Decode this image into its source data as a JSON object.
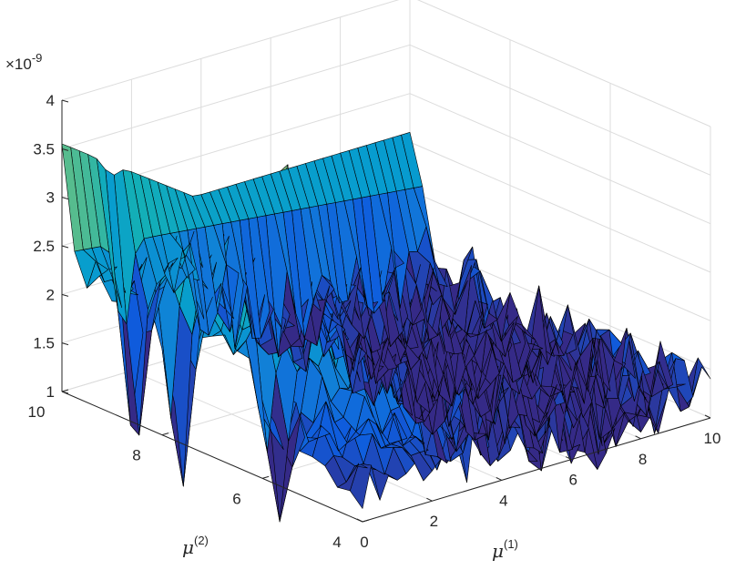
{
  "chart_data": {
    "type": "surface",
    "exponent_label": "×10",
    "exponent_power": "-9",
    "xlabel_symbol": "μ",
    "xlabel_sup": "(1)",
    "ylabel_symbol": "μ",
    "ylabel_sup": "(2)",
    "xlim": [
      0,
      10
    ],
    "ylim": [
      4,
      10
    ],
    "zlim": [
      1,
      4
    ],
    "x_ticks": [
      "0",
      "2",
      "4",
      "6",
      "8",
      "10"
    ],
    "y_ticks": [
      "4",
      "6",
      "8",
      "10"
    ],
    "z_ticks": [
      "1",
      "1.5",
      "2",
      "2.5",
      "3",
      "3.5",
      "4"
    ],
    "grid": true,
    "colormap": "parula",
    "colors": {
      "low": "#352a87",
      "mid": "#21b0bd",
      "high": "#f9fb0e",
      "axis": "#262626",
      "grid": "#dcdcdc",
      "edge": "#000000"
    },
    "grid_size": {
      "nx": 41,
      "ny": 25
    },
    "surface_features": {
      "edge_ridge_at_y10": {
        "z_start": 3.55,
        "z_end": 2.6,
        "lower_band_z": 2.1
      },
      "central_dome": {
        "x_center": 2.0,
        "y_center": 7.3,
        "peak_z": 3.2
      },
      "spike": {
        "x": 3.2,
        "y": 7.8,
        "z": 3.8
      },
      "right_trough_z": 1.25,
      "deep_dips": [
        {
          "x": 0.2,
          "y": 7.8,
          "z": 0.7
        },
        {
          "x": 0.5,
          "y": 6.0,
          "z": 0.55
        },
        {
          "x": 1.4,
          "y": 9.5,
          "z": 1.25
        }
      ]
    }
  }
}
